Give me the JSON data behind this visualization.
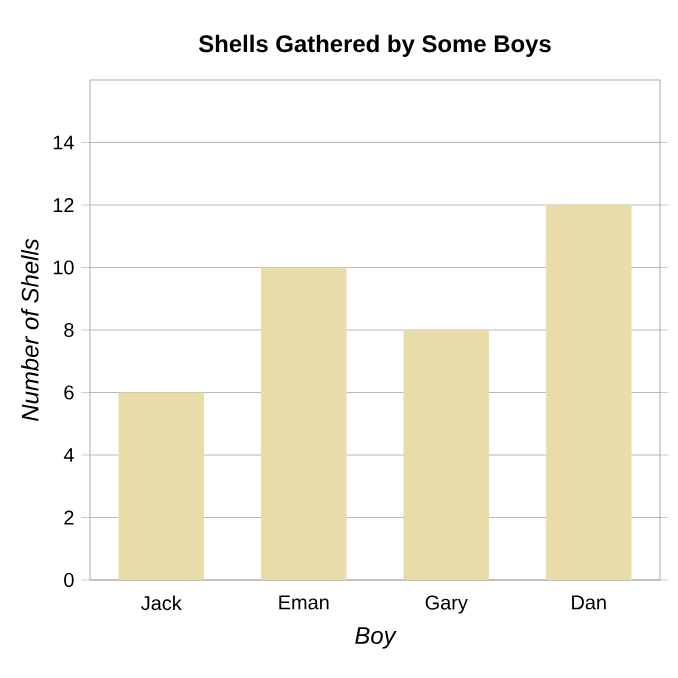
{
  "chart_data": {
    "type": "bar",
    "title": "Shells Gathered by Some Boys",
    "xlabel": "Boy",
    "ylabel": "Number of Shells",
    "categories": [
      "Jack",
      "Eman",
      "Gary",
      "Dan"
    ],
    "values": [
      6,
      10,
      8,
      12
    ],
    "color": "#e8dca8",
    "ylim": [
      0,
      16
    ],
    "yticks": [
      0,
      2,
      4,
      6,
      8,
      10,
      12,
      14
    ],
    "grid": "y"
  }
}
